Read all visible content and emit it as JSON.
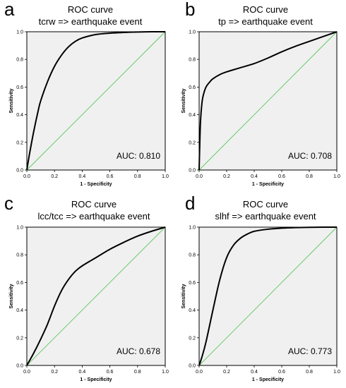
{
  "colors": {
    "plot_bg": "#f0f0f0",
    "curve": "#000000",
    "diagonal": "#5cc85c",
    "frame": "#000000"
  },
  "chart_data": [
    {
      "type": "line",
      "panel": "a",
      "title": "ROC curve",
      "subtitle": "tcrw => earthquake event",
      "xlabel": "1 - Specificity",
      "ylabel": "Sensitivity",
      "xlim": [
        0,
        1
      ],
      "ylim": [
        0,
        1
      ],
      "ticks": [
        "0.0",
        "0.2",
        "0.4",
        "0.6",
        "0.8",
        "1.0"
      ],
      "annotation": "AUC: 0.810",
      "grid": false,
      "series": [
        {
          "x": [
            0,
            0.02,
            0.05,
            0.08,
            0.1,
            0.15,
            0.2,
            0.25,
            0.3,
            0.35,
            0.4,
            0.5,
            0.6,
            0.7,
            0.8,
            0.9,
            1.0
          ],
          "y": [
            0,
            0.12,
            0.28,
            0.42,
            0.5,
            0.64,
            0.75,
            0.83,
            0.89,
            0.93,
            0.955,
            0.98,
            0.99,
            0.995,
            0.998,
            1.0,
            1.0
          ]
        },
        {
          "x": [
            0,
            1
          ],
          "y": [
            0,
            1
          ]
        }
      ]
    },
    {
      "type": "line",
      "panel": "b",
      "title": "ROC curve",
      "subtitle": "tp => earthquake event",
      "xlabel": "1 - Specificity",
      "ylabel": "Sensitivity",
      "xlim": [
        0,
        1
      ],
      "ylim": [
        0,
        1
      ],
      "ticks": [
        "0.0",
        "0.2",
        "0.4",
        "0.6",
        "0.8",
        "1.0"
      ],
      "annotation": "AUC: 0.708",
      "grid": false,
      "series": [
        {
          "x": [
            0,
            0.005,
            0.01,
            0.02,
            0.03,
            0.05,
            0.08,
            0.1,
            0.15,
            0.2,
            0.3,
            0.4,
            0.5,
            0.6,
            0.7,
            0.8,
            0.9,
            1.0
          ],
          "y": [
            0,
            0.2,
            0.35,
            0.48,
            0.54,
            0.6,
            0.64,
            0.66,
            0.69,
            0.71,
            0.74,
            0.77,
            0.81,
            0.855,
            0.895,
            0.93,
            0.965,
            1.0
          ]
        },
        {
          "x": [
            0,
            1
          ],
          "y": [
            0,
            1
          ]
        }
      ]
    },
    {
      "type": "line",
      "panel": "c",
      "title": "ROC curve",
      "subtitle": "lcc/tcc => earthquake event",
      "xlabel": "1 - Specificity",
      "ylabel": "Sensitivity",
      "xlim": [
        0,
        1
      ],
      "ylim": [
        0,
        1
      ],
      "ticks": [
        "0.0",
        "0.2",
        "0.4",
        "0.6",
        "0.8",
        "1.0"
      ],
      "annotation": "AUC: 0.678",
      "grid": false,
      "series": [
        {
          "x": [
            0,
            0.05,
            0.1,
            0.15,
            0.2,
            0.25,
            0.3,
            0.35,
            0.4,
            0.5,
            0.6,
            0.7,
            0.8,
            0.9,
            1.0
          ],
          "y": [
            0,
            0.09,
            0.19,
            0.3,
            0.43,
            0.54,
            0.62,
            0.68,
            0.72,
            0.78,
            0.84,
            0.89,
            0.935,
            0.97,
            1.0
          ]
        },
        {
          "x": [
            0,
            1
          ],
          "y": [
            0,
            1
          ]
        }
      ]
    },
    {
      "type": "line",
      "panel": "d",
      "title": "ROC curve",
      "subtitle": "slhf => earthquake event",
      "xlabel": "1 - Specificity",
      "ylabel": "Sensitivity",
      "xlim": [
        0,
        1
      ],
      "ylim": [
        0,
        1
      ],
      "ticks": [
        "0.0",
        "0.2",
        "0.4",
        "0.6",
        "0.8",
        "1.0"
      ],
      "annotation": "AUC: 0.773",
      "grid": false,
      "series": [
        {
          "x": [
            0,
            0.02,
            0.05,
            0.1,
            0.15,
            0.2,
            0.25,
            0.3,
            0.35,
            0.4,
            0.5,
            0.6,
            0.7,
            0.8,
            0.9,
            1.0
          ],
          "y": [
            0,
            0.06,
            0.17,
            0.4,
            0.62,
            0.78,
            0.87,
            0.92,
            0.95,
            0.97,
            0.985,
            0.993,
            0.997,
            0.999,
            1.0,
            1.0
          ]
        },
        {
          "x": [
            0,
            1
          ],
          "y": [
            0,
            1
          ]
        }
      ]
    }
  ]
}
